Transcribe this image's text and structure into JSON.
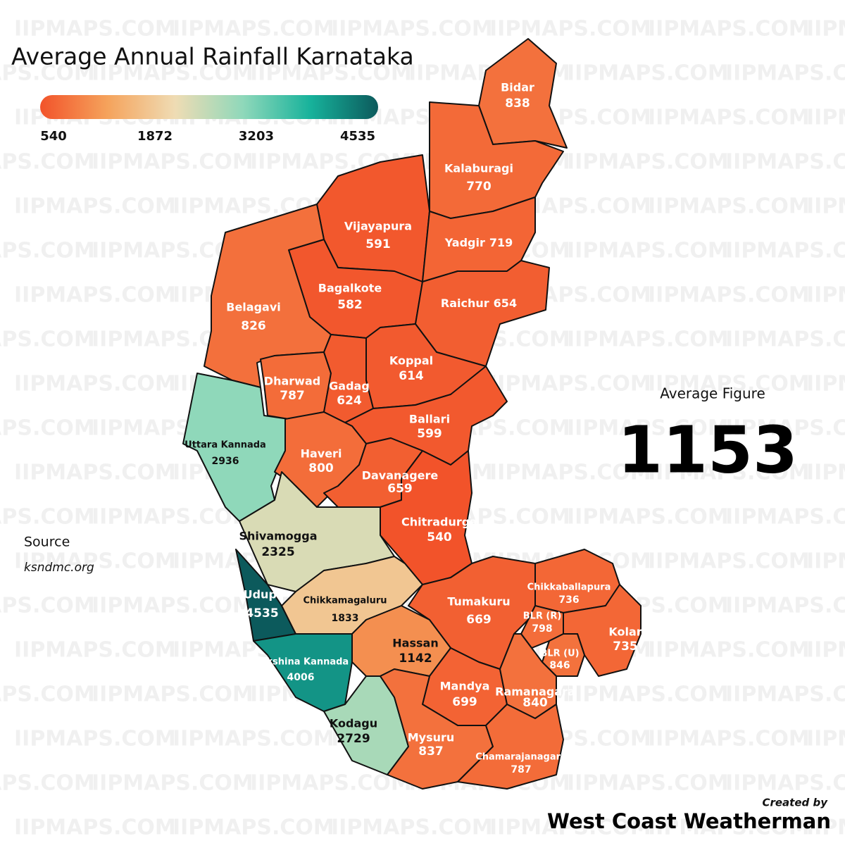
{
  "title": "Average Annual Rainfall Karnataka",
  "watermark": "IIPMAPS.COM",
  "legend": {
    "ticks": [
      540,
      1872,
      3203,
      4535
    ],
    "colors": [
      "#f2532a",
      "#f5a35c",
      "#efdcb4",
      "#8fd8ba",
      "#17b29b",
      "#0c5a5c"
    ]
  },
  "districts": [
    {
      "name": "Bidar",
      "value": 838
    },
    {
      "name": "Kalaburagi",
      "value": 770
    },
    {
      "name": "Vijayapura",
      "value": 591
    },
    {
      "name": "Yadgir",
      "value": 719
    },
    {
      "name": "Bagalkote",
      "value": 582
    },
    {
      "name": "Raichur",
      "value": 654
    },
    {
      "name": "Belagavi",
      "value": 826
    },
    {
      "name": "Koppal",
      "value": 614
    },
    {
      "name": "Dharwad",
      "value": 787
    },
    {
      "name": "Gadag",
      "value": 624
    },
    {
      "name": "Ballari",
      "value": 599
    },
    {
      "name": "Uttara Kannada",
      "value": 2936
    },
    {
      "name": "Haveri",
      "value": 800
    },
    {
      "name": "Davanagere",
      "value": 659
    },
    {
      "name": "Chitradurga",
      "value": 540
    },
    {
      "name": "Shivamogga",
      "value": 2325
    },
    {
      "name": "Chikkaballapura",
      "value": 736
    },
    {
      "name": "Udupi",
      "value": 4535
    },
    {
      "name": "Chikkamagaluru",
      "value": 1833
    },
    {
      "name": "Tumakuru",
      "value": 669
    },
    {
      "name": "BLR (R)",
      "value": 798
    },
    {
      "name": "Kolar",
      "value": 735
    },
    {
      "name": "BLR (U)",
      "value": 846
    },
    {
      "name": "Hassan",
      "value": 1142
    },
    {
      "name": "Dakshina Kannada",
      "value": 4006
    },
    {
      "name": "Mandya",
      "value": 699
    },
    {
      "name": "Ramanagara",
      "value": 840
    },
    {
      "name": "Kodagu",
      "value": 2729
    },
    {
      "name": "Mysuru",
      "value": 837
    },
    {
      "name": "Chamarajanagara",
      "value": 787
    }
  ],
  "average": {
    "label": "Average Figure",
    "value": 1153
  },
  "source": {
    "label": "Source",
    "text": "ksndmc.org"
  },
  "credit": {
    "label": "Created by",
    "text": "West Coast Weatherman"
  }
}
